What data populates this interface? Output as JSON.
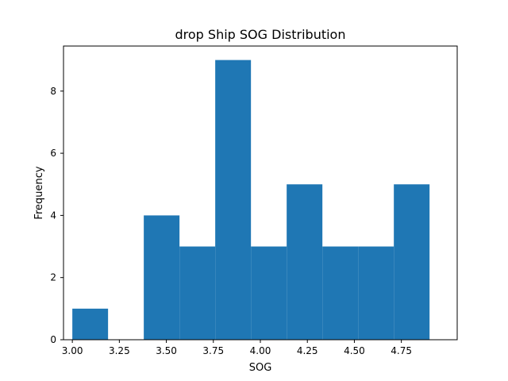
{
  "chart_data": {
    "type": "bar",
    "title": "drop Ship SOG Distribution",
    "xlabel": "SOG",
    "ylabel": "Frequency",
    "xlim": [
      2.953,
      5.047
    ],
    "ylim": [
      0,
      9.45
    ],
    "x_ticks": [
      "3.00",
      "3.25",
      "3.50",
      "3.75",
      "4.00",
      "4.25",
      "4.50",
      "4.75"
    ],
    "x_tick_values": [
      3.0,
      3.25,
      3.5,
      3.75,
      4.0,
      4.25,
      4.5,
      4.75
    ],
    "y_ticks": [
      "0",
      "2",
      "4",
      "6",
      "8"
    ],
    "y_tick_values": [
      0,
      2,
      4,
      6,
      8
    ],
    "bins": [
      {
        "start": 3.0,
        "end": 3.19,
        "value": 1
      },
      {
        "start": 3.19,
        "end": 3.38,
        "value": 0
      },
      {
        "start": 3.38,
        "end": 3.57,
        "value": 4
      },
      {
        "start": 3.57,
        "end": 3.76,
        "value": 3
      },
      {
        "start": 3.76,
        "end": 3.95,
        "value": 9
      },
      {
        "start": 3.95,
        "end": 4.14,
        "value": 3
      },
      {
        "start": 4.14,
        "end": 4.33,
        "value": 5
      },
      {
        "start": 4.33,
        "end": 4.52,
        "value": 3
      },
      {
        "start": 4.52,
        "end": 4.71,
        "value": 3
      },
      {
        "start": 4.71,
        "end": 4.9,
        "value": 5
      }
    ],
    "bar_color": "#1f77b4",
    "grid": false,
    "legend": "none"
  }
}
